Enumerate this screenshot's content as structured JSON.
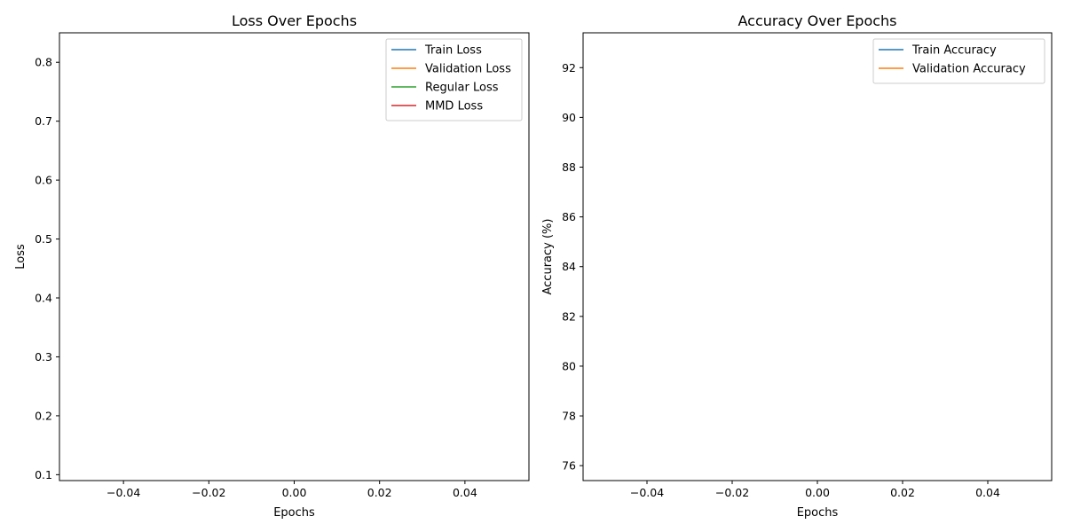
{
  "chart_data": [
    {
      "type": "line",
      "title": "Loss Over Epochs",
      "xlabel": "Epochs",
      "ylabel": "Loss",
      "xlim": [
        -0.055,
        0.055
      ],
      "ylim": [
        0.09,
        0.85
      ],
      "x_ticks": [
        "−0.04",
        "−0.02",
        "0.00",
        "0.02",
        "0.04"
      ],
      "x_tick_values": [
        -0.04,
        -0.02,
        0.0,
        0.02,
        0.04
      ],
      "y_ticks": [
        "0.1",
        "0.2",
        "0.3",
        "0.4",
        "0.5",
        "0.6",
        "0.7",
        "0.8"
      ],
      "y_tick_values": [
        0.1,
        0.2,
        0.3,
        0.4,
        0.5,
        0.6,
        0.7,
        0.8
      ],
      "grid": false,
      "legend_position": "top-right",
      "series": [
        {
          "name": "Train Loss",
          "color": "#1f77b4",
          "x": [],
          "y": []
        },
        {
          "name": "Validation Loss",
          "color": "#ff7f0e",
          "x": [],
          "y": []
        },
        {
          "name": "Regular Loss",
          "color": "#2ca02c",
          "x": [],
          "y": []
        },
        {
          "name": "MMD Loss",
          "color": "#d62728",
          "x": [],
          "y": []
        }
      ]
    },
    {
      "type": "line",
      "title": "Accuracy Over Epochs",
      "xlabel": "Epochs",
      "ylabel": "Accuracy (%)",
      "xlim": [
        -0.055,
        0.055
      ],
      "ylim": [
        75.4,
        93.4
      ],
      "x_ticks": [
        "−0.04",
        "−0.02",
        "0.00",
        "0.02",
        "0.04"
      ],
      "x_tick_values": [
        -0.04,
        -0.02,
        0.0,
        0.02,
        0.04
      ],
      "y_ticks": [
        "76",
        "78",
        "80",
        "82",
        "84",
        "86",
        "88",
        "90",
        "92"
      ],
      "y_tick_values": [
        76,
        78,
        80,
        82,
        84,
        86,
        88,
        90,
        92
      ],
      "grid": false,
      "legend_position": "top-right",
      "series": [
        {
          "name": "Train Accuracy",
          "color": "#1f77b4",
          "x": [],
          "y": []
        },
        {
          "name": "Validation Accuracy",
          "color": "#ff7f0e",
          "x": [],
          "y": []
        }
      ]
    }
  ]
}
